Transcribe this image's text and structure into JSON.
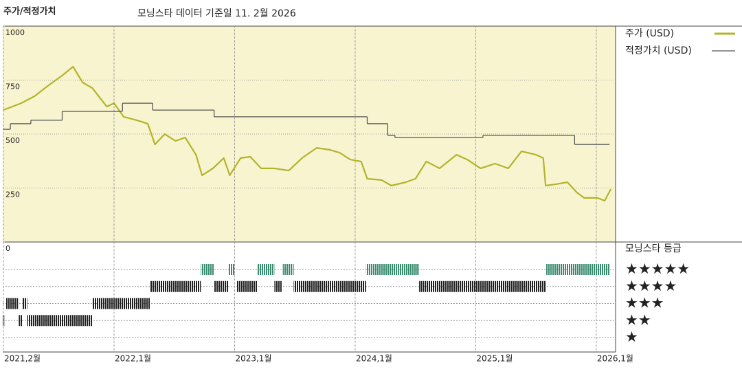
{
  "chart_data": {
    "type": "line",
    "title": "주가/적정가치",
    "subtitle": "모닝스타 데이터 기준일 11. 2월 2026",
    "xlim": [
      2021.077,
      2026.16
    ],
    "xticks": [
      {
        "value": 2021.083,
        "label": "2021,2월"
      },
      {
        "value": 2022,
        "label": "2022,1월"
      },
      {
        "value": 2023,
        "label": "2023,1월"
      },
      {
        "value": 2024,
        "label": "2024,1월"
      },
      {
        "value": 2025,
        "label": "2025,1월"
      },
      {
        "value": 2026,
        "label": "2026,1월"
      }
    ],
    "ylim": [
      0,
      1000
    ],
    "yticks": [
      0,
      250,
      500,
      750,
      1000
    ],
    "grid": true,
    "series": [
      {
        "name": "주가 (USD)",
        "color": "#b3b32b",
        "x": [
          2021.08,
          2021.23,
          2021.34,
          2021.45,
          2021.57,
          2021.66,
          2021.74,
          2021.82,
          2021.94,
          2022.0,
          2022.08,
          2022.19,
          2022.28,
          2022.34,
          2022.42,
          2022.51,
          2022.59,
          2022.68,
          2022.73,
          2022.82,
          2022.91,
          2022.96,
          2023.05,
          2023.13,
          2023.22,
          2023.33,
          2023.45,
          2023.56,
          2023.68,
          2023.79,
          2023.87,
          2023.96,
          2024.05,
          2024.1,
          2024.22,
          2024.3,
          2024.42,
          2024.5,
          2024.59,
          2024.7,
          2024.84,
          2024.93,
          2025.04,
          2025.16,
          2025.27,
          2025.38,
          2025.5,
          2025.56,
          2025.58,
          2025.67,
          2025.76,
          2025.84,
          2025.9,
          2026.01,
          2026.07,
          2026.12
        ],
        "values": [
          611,
          643,
          675,
          723,
          771,
          812,
          739,
          713,
          627,
          643,
          580,
          564,
          548,
          452,
          500,
          468,
          484,
          404,
          309,
          341,
          389,
          309,
          389,
          395,
          341,
          341,
          331,
          389,
          436,
          427,
          414,
          382,
          373,
          293,
          287,
          261,
          277,
          293,
          373,
          341,
          404,
          382,
          341,
          363,
          341,
          420,
          404,
          389,
          261,
          268,
          277,
          229,
          204,
          204,
          191,
          245
        ]
      },
      {
        "name": "적정가치 (USD)",
        "color": "#555555",
        "step": "post",
        "x": [
          2021.08,
          2021.14,
          2021.31,
          2021.57,
          2022.07,
          2022.32,
          2022.83,
          2024.1,
          2024.27,
          2024.33,
          2025.06,
          2025.82,
          2026.11
        ],
        "values": [
          522,
          548,
          564,
          605,
          643,
          611,
          580,
          548,
          494,
          484,
          494,
          452,
          452
        ]
      }
    ],
    "ratings": {
      "title": "모닝스타 등급",
      "labels": [
        "★",
        "★★",
        "★★★",
        "★★★★",
        "★★★★★"
      ],
      "color": "#222222",
      "top_color": "#3d8c70",
      "periods": [
        {
          "stars": 2,
          "start": 2021.077,
          "end": 2021.09
        },
        {
          "stars": 3,
          "start": 2021.1,
          "end": 2021.21
        },
        {
          "stars": 2,
          "start": 2021.21,
          "end": 2021.24
        },
        {
          "stars": 3,
          "start": 2021.24,
          "end": 2021.28
        },
        {
          "stars": 2,
          "start": 2021.28,
          "end": 2021.82
        },
        {
          "stars": 3,
          "start": 2021.82,
          "end": 2022.3
        },
        {
          "stars": 4,
          "start": 2022.3,
          "end": 2022.72
        },
        {
          "stars": 5,
          "start": 2022.72,
          "end": 2022.83
        },
        {
          "stars": 4,
          "start": 2022.83,
          "end": 2022.95
        },
        {
          "stars": 5,
          "start": 2022.95,
          "end": 2023.0
        },
        {
          "stars": 4,
          "start": 2023.02,
          "end": 2023.19
        },
        {
          "stars": 5,
          "start": 2023.19,
          "end": 2023.33
        },
        {
          "stars": 4,
          "start": 2023.33,
          "end": 2023.39
        },
        {
          "stars": 5,
          "start": 2023.4,
          "end": 2023.49
        },
        {
          "stars": 4,
          "start": 2023.49,
          "end": 2024.09
        },
        {
          "stars": 5,
          "start": 2024.09,
          "end": 2024.53
        },
        {
          "stars": 4,
          "start": 2024.53,
          "end": 2025.58
        },
        {
          "stars": 5,
          "start": 2025.58,
          "end": 2026.11
        }
      ]
    }
  }
}
